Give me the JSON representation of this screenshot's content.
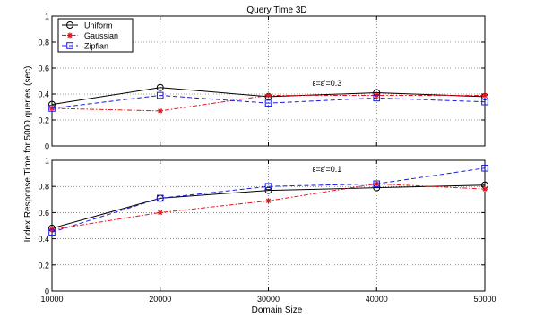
{
  "chart_data": {
    "type": "line",
    "title": "Query Time 3D",
    "xlabel": "Domain Size",
    "ylabel": "Index Response Time for 5000 queries (sec)",
    "x": [
      10000,
      20000,
      30000,
      40000,
      50000
    ],
    "xlim": [
      10000,
      50000
    ],
    "xticks": [
      "10000",
      "20000",
      "30000",
      "40000",
      "50000"
    ],
    "grid": true,
    "legend": {
      "placement": "top-left",
      "entries": [
        "Uniform",
        "Gaussian",
        "Zipfian"
      ]
    },
    "colors": {
      "Uniform": "#000000",
      "Gaussian": "#e8141c",
      "Zipfian": "#1a1ae6"
    },
    "markers": {
      "Uniform": "circle",
      "Gaussian": "star",
      "Zipfian": "square"
    },
    "panels": [
      {
        "ylim": [
          0,
          1
        ],
        "yticks": [
          "0",
          "0.2",
          "0.4",
          "0.6",
          "0.8",
          "1"
        ],
        "annotation": "ε=ε'=0.3",
        "series": [
          {
            "name": "Uniform",
            "values": [
              0.32,
              0.45,
              0.38,
              0.41,
              0.38
            ]
          },
          {
            "name": "Gaussian",
            "values": [
              0.29,
              0.27,
              0.39,
              0.39,
              0.39
            ]
          },
          {
            "name": "Zipfian",
            "values": [
              0.29,
              0.39,
              0.33,
              0.37,
              0.34
            ]
          }
        ]
      },
      {
        "ylim": [
          0,
          1
        ],
        "yticks": [
          "0",
          "0.2",
          "0.4",
          "0.6",
          "0.8",
          "1"
        ],
        "annotation": "ε=ε'=0.1",
        "series": [
          {
            "name": "Uniform",
            "values": [
              0.48,
              0.71,
              0.77,
              0.79,
              0.81
            ]
          },
          {
            "name": "Gaussian",
            "values": [
              0.47,
              0.6,
              0.69,
              0.82,
              0.78
            ]
          },
          {
            "name": "Zipfian",
            "values": [
              0.45,
              0.71,
              0.8,
              0.82,
              0.94
            ]
          }
        ]
      }
    ]
  }
}
